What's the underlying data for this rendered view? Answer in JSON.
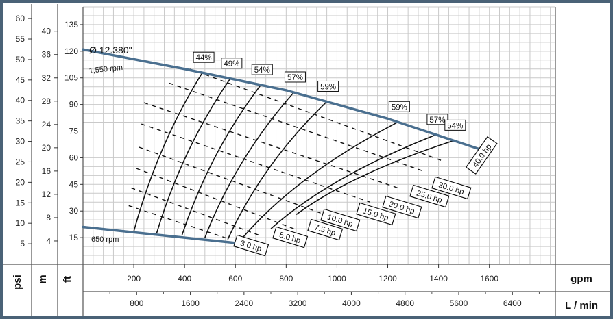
{
  "chart_data": {
    "type": "line",
    "title": "",
    "impeller": {
      "diameter_label": "Ø 12.380\"",
      "max_speed_label": "1,550 rpm",
      "min_speed_label": "650 rpm"
    },
    "units": {
      "psi": "psi",
      "m": "m",
      "ft": "ft",
      "gpm": "gpm",
      "lmin": "L / min"
    },
    "x_gpm": {
      "range": [
        0,
        1860
      ],
      "ticks": [
        "200",
        "400",
        "600",
        "800",
        "1000",
        "1200",
        "1400",
        "1600"
      ]
    },
    "x_lmin": {
      "ticks": [
        "800",
        "1600",
        "2400",
        "3200",
        "4000",
        "4800",
        "5600",
        "6400"
      ]
    },
    "y_ft": {
      "range": [
        0,
        145
      ],
      "ticks": [
        "15",
        "30",
        "45",
        "60",
        "75",
        "90",
        "105",
        "120",
        "135"
      ]
    },
    "y_m": {
      "ticks": [
        "4",
        "8",
        "12",
        "16",
        "20",
        "24",
        "28",
        "32",
        "36",
        "40"
      ]
    },
    "y_psi": {
      "ticks": [
        "5",
        "10",
        "15",
        "20",
        "25",
        "30",
        "35",
        "40",
        "45",
        "50",
        "55",
        "60"
      ]
    },
    "series": [
      {
        "name": "1,550 rpm",
        "x": [
          0,
          400,
          800,
          1200,
          1600
        ],
        "y": [
          121,
          110,
          98,
          82,
          63
        ]
      },
      {
        "name": "650 rpm",
        "x": [
          0,
          200,
          400,
          600
        ],
        "y": [
          21,
          18,
          15,
          12
        ]
      }
    ],
    "efficiency": [
      {
        "label": "44%",
        "bottom": [
          200,
          18.5
        ],
        "top": [
          470,
          111
        ]
      },
      {
        "label": "49%",
        "bottom": [
          290,
          17.5
        ],
        "top": [
          580,
          108
        ]
      },
      {
        "label": "54%",
        "bottom": [
          390,
          16.5
        ],
        "top": [
          700,
          104
        ]
      },
      {
        "label": "57%",
        "bottom": [
          480,
          15
        ],
        "top": [
          830,
          97
        ]
      },
      {
        "label": "59%",
        "bottom": [
          570,
          14
        ],
        "top": [
          960,
          91
        ]
      },
      {
        "label": "59%",
        "bottom": [
          620,
          13.5
        ],
        "top": [
          1240,
          79
        ]
      },
      {
        "label": "57%",
        "bottom": [
          740,
          20
        ],
        "top": [
          1390,
          72
        ]
      },
      {
        "label": "54%",
        "bottom": [
          840,
          28
        ],
        "top": [
          1460,
          67
        ]
      }
    ],
    "horsepower": [
      {
        "label": "3.0 hp",
        "x1": 180,
        "y1": 33,
        "x2": 580,
        "y2": 14
      },
      {
        "label": "5.0 hp",
        "x1": 190,
        "y1": 43,
        "x2": 700,
        "y2": 16
      },
      {
        "label": "7.5 hp",
        "x1": 210,
        "y1": 54,
        "x2": 830,
        "y2": 20
      },
      {
        "label": "10.0 hp",
        "x1": 220,
        "y1": 66,
        "x2": 990,
        "y2": 26
      },
      {
        "label": "15.0 hp",
        "x1": 230,
        "y1": 79,
        "x2": 1130,
        "y2": 35
      },
      {
        "label": "20.0 hp",
        "x1": 240,
        "y1": 91,
        "x2": 1240,
        "y2": 43
      },
      {
        "label": "25.0 hp",
        "x1": 340,
        "y1": 102,
        "x2": 1350,
        "y2": 52
      },
      {
        "label": "30.0 hp",
        "x1": 420,
        "y1": 110,
        "x2": 1420,
        "y2": 58
      },
      {
        "label": "40.0 hp",
        "x1": 1500,
        "y1": 62,
        "x2": 1500,
        "y2": 62
      }
    ]
  }
}
